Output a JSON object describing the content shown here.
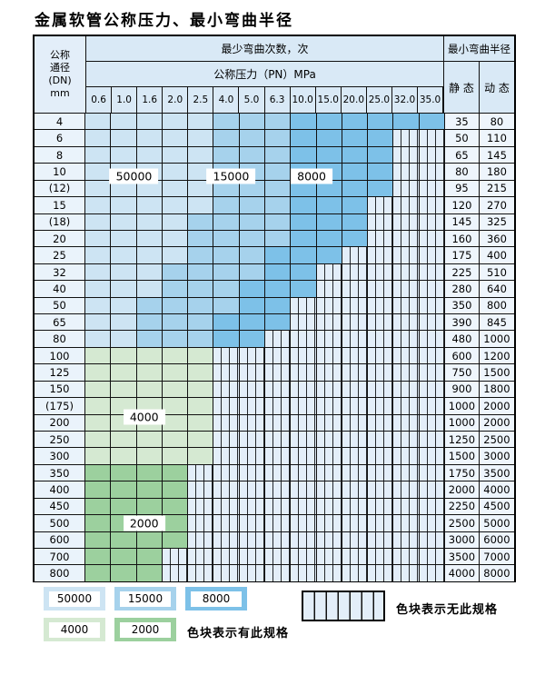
{
  "title": "金属软管公称压力、最小弯曲半径",
  "header": {
    "dn_lines": [
      "公称",
      "通径",
      "(DN)",
      "mm"
    ],
    "bend_cycles": "最少弯曲次数，次",
    "pressure": "公称压力（PN）MPa",
    "min_radius": "最小弯曲半径",
    "static": "静 态",
    "dynamic": "动 态"
  },
  "colors": {
    "50000": "#cde4f3",
    "15000": "#a6d2ec",
    "8000": "#7dc1e8",
    "4000": "#d5e9d2",
    "2000": "#9cd09e",
    "hatch_bg": "#e3eef9",
    "header_bg": "#d9e9f6"
  },
  "zone_labels": [
    {
      "text": "50000",
      "col": 1.9,
      "row": 3.8
    },
    {
      "text": "15000",
      "col": 5.7,
      "row": 3.8
    },
    {
      "text": "8000",
      "col": 8.85,
      "row": 3.8
    },
    {
      "text": "4000",
      "col": 2.3,
      "row": 18.2
    },
    {
      "text": "2000",
      "col": 2.3,
      "row": 24.6
    }
  ],
  "legend": {
    "swatches": [
      {
        "label": "50000",
        "row": 0,
        "slot": 0
      },
      {
        "label": "15000",
        "row": 0,
        "slot": 1
      },
      {
        "label": "8000",
        "row": 0,
        "slot": 2
      },
      {
        "label": "4000",
        "row": 1,
        "slot": 0
      },
      {
        "label": "2000",
        "row": 1,
        "slot": 1
      }
    ],
    "has_spec": "色块表示有此规格",
    "no_spec": "色块表示无此规格"
  },
  "chart_data": {
    "type": "table",
    "title": "金属软管公称压力、最小弯曲半径",
    "columns_mpa": [
      "0.6",
      "1.0",
      "1.6",
      "2.0",
      "2.5",
      "4.0",
      "5.0",
      "6.3",
      "10.0",
      "15.0",
      "20.0",
      "25.0",
      "32.0",
      "35.0"
    ],
    "legend_cycles": [
      50000,
      15000,
      8000,
      4000,
      2000
    ],
    "note": "colored band = spec exists with given min bend cycles; hatched = no such spec",
    "rows": [
      {
        "dn": "4",
        "static": "35",
        "dynamic": "80",
        "bands": [
          [
            "50000",
            0,
            4
          ],
          [
            "15000",
            5,
            7
          ],
          [
            "8000",
            8,
            13
          ]
        ]
      },
      {
        "dn": "6",
        "static": "50",
        "dynamic": "110",
        "bands": [
          [
            "50000",
            0,
            4
          ],
          [
            "15000",
            5,
            7
          ],
          [
            "8000",
            8,
            11
          ]
        ]
      },
      {
        "dn": "8",
        "static": "65",
        "dynamic": "145",
        "bands": [
          [
            "50000",
            0,
            4
          ],
          [
            "15000",
            5,
            7
          ],
          [
            "8000",
            8,
            11
          ]
        ]
      },
      {
        "dn": "10",
        "static": "80",
        "dynamic": "180",
        "bands": [
          [
            "50000",
            0,
            4
          ],
          [
            "15000",
            5,
            7
          ],
          [
            "8000",
            8,
            11
          ]
        ]
      },
      {
        "dn": "(12)",
        "static": "95",
        "dynamic": "215",
        "bands": [
          [
            "50000",
            0,
            4
          ],
          [
            "15000",
            5,
            7
          ],
          [
            "8000",
            8,
            11
          ]
        ]
      },
      {
        "dn": "15",
        "static": "120",
        "dynamic": "270",
        "bands": [
          [
            "50000",
            0,
            4
          ],
          [
            "15000",
            5,
            7
          ],
          [
            "8000",
            8,
            10
          ]
        ]
      },
      {
        "dn": "(18)",
        "static": "145",
        "dynamic": "325",
        "bands": [
          [
            "50000",
            0,
            3
          ],
          [
            "15000",
            4,
            7
          ],
          [
            "8000",
            8,
            10
          ]
        ]
      },
      {
        "dn": "20",
        "static": "160",
        "dynamic": "360",
        "bands": [
          [
            "50000",
            0,
            3
          ],
          [
            "15000",
            4,
            7
          ],
          [
            "8000",
            8,
            10
          ]
        ]
      },
      {
        "dn": "25",
        "static": "175",
        "dynamic": "400",
        "bands": [
          [
            "50000",
            0,
            3
          ],
          [
            "15000",
            4,
            6
          ],
          [
            "8000",
            7,
            9
          ]
        ]
      },
      {
        "dn": "32",
        "static": "225",
        "dynamic": "510",
        "bands": [
          [
            "50000",
            0,
            2
          ],
          [
            "15000",
            3,
            6
          ],
          [
            "8000",
            7,
            8
          ]
        ]
      },
      {
        "dn": "40",
        "static": "280",
        "dynamic": "640",
        "bands": [
          [
            "50000",
            0,
            2
          ],
          [
            "15000",
            3,
            5
          ],
          [
            "8000",
            6,
            8
          ]
        ]
      },
      {
        "dn": "50",
        "static": "350",
        "dynamic": "800",
        "bands": [
          [
            "50000",
            0,
            1
          ],
          [
            "15000",
            2,
            5
          ],
          [
            "8000",
            6,
            7
          ]
        ]
      },
      {
        "dn": "65",
        "static": "390",
        "dynamic": "845",
        "bands": [
          [
            "50000",
            0,
            1
          ],
          [
            "15000",
            2,
            4
          ],
          [
            "8000",
            5,
            7
          ]
        ]
      },
      {
        "dn": "80",
        "static": "480",
        "dynamic": "1000",
        "bands": [
          [
            "50000",
            0,
            1
          ],
          [
            "15000",
            2,
            4
          ],
          [
            "8000",
            5,
            6
          ]
        ]
      },
      {
        "dn": "100",
        "static": "600",
        "dynamic": "1200",
        "bands": [
          [
            "4000",
            0,
            4
          ]
        ]
      },
      {
        "dn": "125",
        "static": "750",
        "dynamic": "1500",
        "bands": [
          [
            "4000",
            0,
            4
          ]
        ]
      },
      {
        "dn": "150",
        "static": "900",
        "dynamic": "1800",
        "bands": [
          [
            "4000",
            0,
            4
          ]
        ]
      },
      {
        "dn": "(175)",
        "static": "1000",
        "dynamic": "2000",
        "bands": [
          [
            "4000",
            0,
            4
          ]
        ]
      },
      {
        "dn": "200",
        "static": "1000",
        "dynamic": "2000",
        "bands": [
          [
            "4000",
            0,
            4
          ]
        ]
      },
      {
        "dn": "250",
        "static": "1250",
        "dynamic": "2500",
        "bands": [
          [
            "4000",
            0,
            4
          ]
        ]
      },
      {
        "dn": "300",
        "static": "1500",
        "dynamic": "3000",
        "bands": [
          [
            "4000",
            0,
            4
          ]
        ]
      },
      {
        "dn": "350",
        "static": "1750",
        "dynamic": "3500",
        "bands": [
          [
            "2000",
            0,
            3
          ]
        ]
      },
      {
        "dn": "400",
        "static": "2000",
        "dynamic": "4000",
        "bands": [
          [
            "2000",
            0,
            3
          ]
        ]
      },
      {
        "dn": "450",
        "static": "2250",
        "dynamic": "4500",
        "bands": [
          [
            "2000",
            0,
            3
          ]
        ]
      },
      {
        "dn": "500",
        "static": "2500",
        "dynamic": "5000",
        "bands": [
          [
            "2000",
            0,
            3
          ]
        ]
      },
      {
        "dn": "600",
        "static": "3000",
        "dynamic": "6000",
        "bands": [
          [
            "2000",
            0,
            3
          ]
        ]
      },
      {
        "dn": "700",
        "static": "3500",
        "dynamic": "7000",
        "bands": [
          [
            "2000",
            0,
            2
          ]
        ]
      },
      {
        "dn": "800",
        "static": "4000",
        "dynamic": "8000",
        "bands": [
          [
            "2000",
            0,
            2
          ]
        ]
      }
    ]
  }
}
